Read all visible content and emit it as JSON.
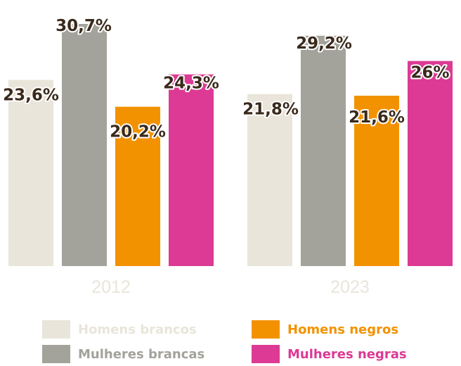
{
  "chart_data": {
    "type": "bar",
    "categories": [
      "2012",
      "2023"
    ],
    "series": [
      {
        "name": "Homens brancos",
        "values": [
          23.6,
          21.8
        ],
        "labels": [
          "23,6%",
          "21,8%"
        ],
        "color": "#e9e5da"
      },
      {
        "name": "Mulheres brancas",
        "values": [
          30.7,
          29.2
        ],
        "labels": [
          "30,7%",
          "29,2%"
        ],
        "color": "#a3a29b"
      },
      {
        "name": "Homens negros",
        "values": [
          20.2,
          21.6
        ],
        "labels": [
          "20,2%",
          "21,6%"
        ],
        "color": "#f39200"
      },
      {
        "name": "Mulheres negras",
        "values": [
          24.3,
          26
        ],
        "labels": [
          "24,3%",
          "26%"
        ],
        "color": "#dc3a94"
      }
    ],
    "ylim": [
      0,
      30.7
    ],
    "grid": false,
    "legend_position": "bottom"
  }
}
